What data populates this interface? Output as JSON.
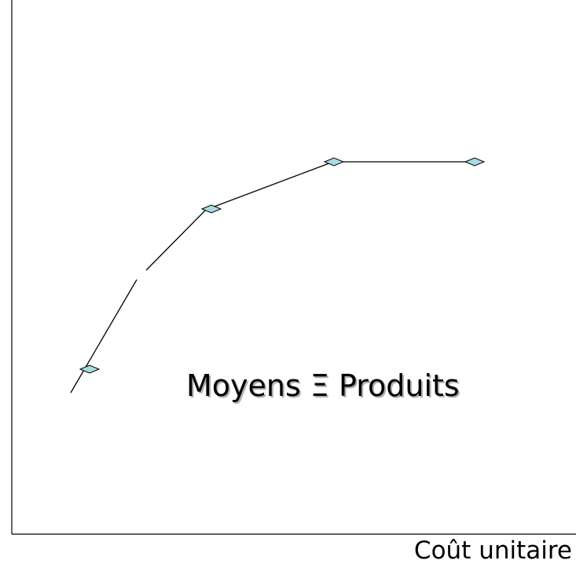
{
  "annotation": "Moyens Ξ Produits",
  "x_axis_label": "Coût unitaire"
}
